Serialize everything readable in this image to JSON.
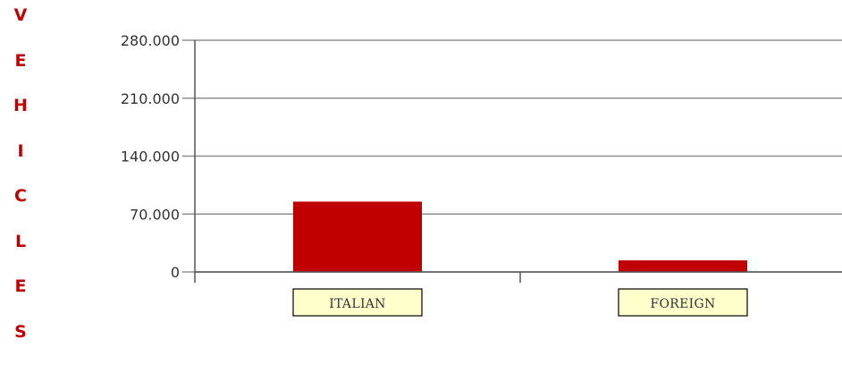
{
  "chart_data": {
    "type": "bar",
    "ylabel": "VEHICLES",
    "categories": [
      "ITALIAN",
      "FOREIGN"
    ],
    "series": [
      {
        "values": [
          85000,
          14000
        ]
      }
    ],
    "y_ticks": [
      "0",
      "70.000",
      "140.000",
      "210.000",
      "280.000"
    ],
    "ylim": [
      0,
      280000
    ],
    "grid": true,
    "colors": {
      "bar": "#c00000",
      "grid": "#909090",
      "axis": "#555555",
      "label_bg": "#ffffcc"
    }
  }
}
